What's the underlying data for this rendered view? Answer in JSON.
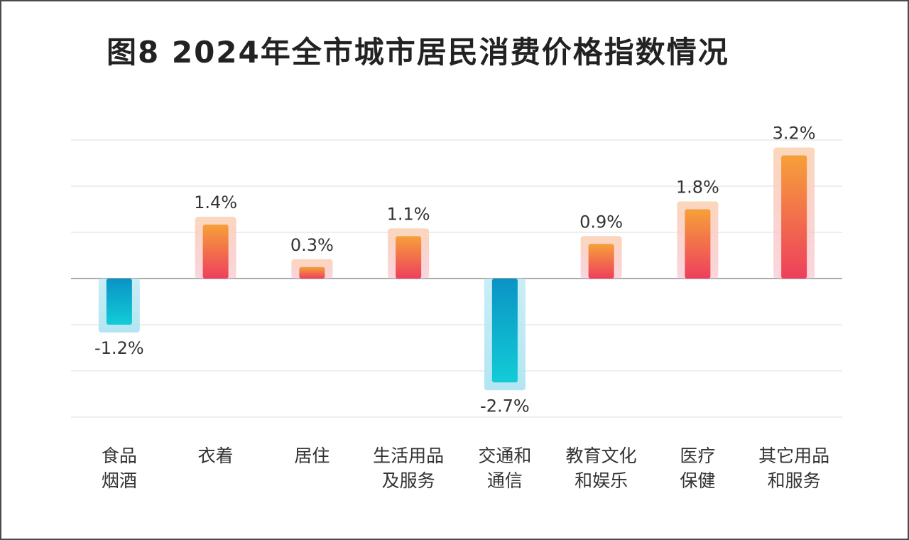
{
  "title": "图8  2024年全市城市居民消费价格指数情况",
  "chart_data": {
    "type": "bar",
    "title": "图8  2024年全市城市居民消费价格指数情况",
    "categories": [
      [
        "食品",
        "烟酒"
      ],
      [
        "衣着"
      ],
      [
        "居住"
      ],
      [
        "生活用品",
        "及服务"
      ],
      [
        "交通和",
        "通信"
      ],
      [
        "教育文化",
        "和娱乐"
      ],
      [
        "医疗",
        "保健"
      ],
      [
        "其它用品",
        "和服务"
      ]
    ],
    "values": [
      -1.2,
      1.4,
      0.3,
      1.1,
      -2.7,
      0.9,
      1.8,
      3.2
    ],
    "labels": [
      "-1.2%",
      "1.4%",
      "0.3%",
      "1.1%",
      "-2.7%",
      "0.9%",
      "1.8%",
      "3.2%"
    ],
    "ylim": [
      -3.6,
      3.6
    ],
    "grid": true,
    "colors": {
      "positive_top": "#f6a03a",
      "positive_bottom": "#ee3f5c",
      "negative_top": "#0a93c5",
      "negative_bottom": "#13ccd6",
      "positive_glow": "#fbd7bc",
      "negative_glow": "#b2e6f2",
      "grid": "#dddddd",
      "axis": "#aaaaaa"
    }
  }
}
